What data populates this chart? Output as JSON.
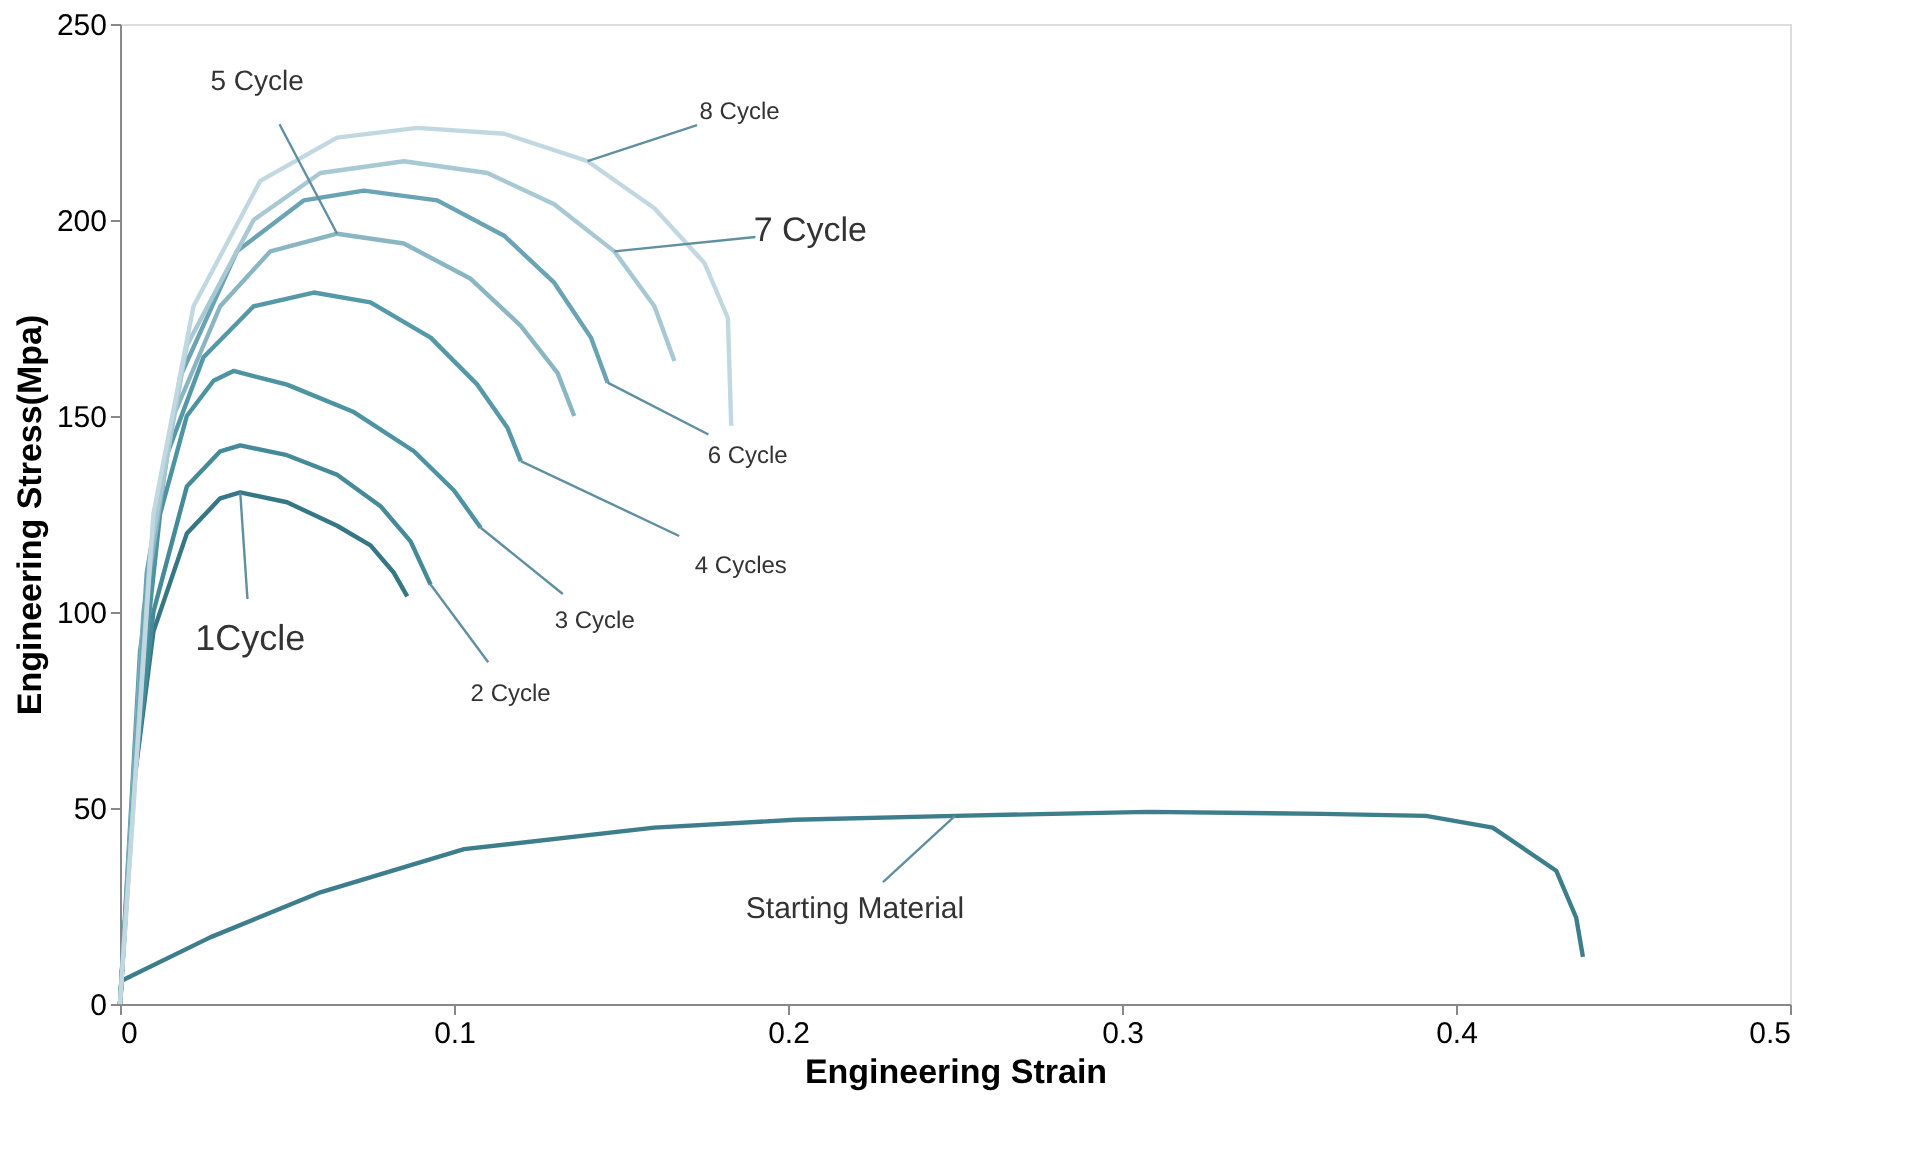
{
  "chart_data": {
    "type": "line",
    "xlabel": "Engineering Strain",
    "ylabel": "Engineering Stress(Mpa)",
    "xlim": [
      0,
      0.5
    ],
    "xticks": [
      0,
      0.1,
      0.2,
      0.3,
      0.4,
      0.5
    ],
    "ylim": [
      0,
      250
    ],
    "yticks": [
      0,
      50,
      100,
      150,
      200,
      250
    ],
    "grid": false,
    "legend": false,
    "line_style": "solid",
    "marker": "none",
    "series": [
      {
        "color": "#3e7e8c",
        "x": [
          0,
          0.0006,
          0.027,
          0.06,
          0.103,
          0.16,
          0.202,
          0.25,
          0.308,
          0.36,
          0.391,
          0.411,
          0.43,
          0.436,
          0.438
        ],
        "values": [
          0,
          6,
          17,
          28.5,
          39.5,
          45,
          47,
          48,
          49,
          48.5,
          48,
          45,
          34,
          22,
          12
        ]
      },
      {
        "color": "#357785",
        "x": [
          0,
          0.004,
          0.01,
          0.02,
          0.03,
          0.036,
          0.05,
          0.065,
          0.075,
          0.082,
          0.086
        ],
        "values": [
          0,
          55,
          95,
          120,
          129,
          130.5,
          128,
          122,
          117,
          110,
          104
        ]
      },
      {
        "color": "#458a98",
        "x": [
          0,
          0.004,
          0.01,
          0.02,
          0.03,
          0.036,
          0.05,
          0.065,
          0.078,
          0.087,
          0.093
        ],
        "values": [
          0,
          55,
          100,
          132,
          141,
          142.5,
          140,
          135,
          127,
          118,
          107
        ]
      },
      {
        "color": "#4d93a2",
        "x": [
          0,
          0.005,
          0.012,
          0.02,
          0.028,
          0.034,
          0.05,
          0.07,
          0.088,
          0.1,
          0.108
        ],
        "values": [
          0,
          70,
          125,
          150,
          159,
          161.5,
          158,
          151,
          141,
          131,
          121.5
        ]
      },
      {
        "color": "#5598a8",
        "x": [
          0,
          0.006,
          0.014,
          0.025,
          0.04,
          0.058,
          0.075,
          0.093,
          0.107,
          0.116,
          0.12
        ],
        "values": [
          0,
          90,
          140,
          165,
          178,
          181.5,
          179,
          170,
          158,
          147,
          138.5
        ]
      },
      {
        "color": "#8ab6c4",
        "x": [
          0,
          0.007,
          0.016,
          0.03,
          0.045,
          0.065,
          0.085,
          0.105,
          0.12,
          0.131,
          0.136
        ],
        "values": [
          0,
          100,
          150,
          178,
          192,
          196.5,
          194,
          185,
          173,
          161,
          150
        ]
      },
      {
        "color": "#6aa3b3",
        "x": [
          0,
          0.008,
          0.018,
          0.035,
          0.055,
          0.073,
          0.095,
          0.115,
          0.13,
          0.141,
          0.146
        ],
        "values": [
          0,
          110,
          160,
          192,
          205,
          207.5,
          205,
          196,
          184,
          170,
          158.5
        ]
      },
      {
        "color": "#a8c8d4",
        "x": [
          0,
          0.009,
          0.02,
          0.04,
          0.06,
          0.085,
          0.11,
          0.13,
          0.148,
          0.16,
          0.166
        ],
        "values": [
          0,
          115,
          168,
          200,
          212,
          215,
          212,
          204,
          192,
          178,
          164
        ]
      },
      {
        "color": "#c2d8e1",
        "x": [
          0,
          0.01,
          0.022,
          0.042,
          0.065,
          0.089,
          0.115,
          0.14,
          0.16,
          0.175,
          0.182,
          0.183
        ],
        "values": [
          0,
          125,
          178,
          210,
          221,
          223.5,
          222,
          215,
          203,
          189,
          175,
          147.5
        ]
      }
    ],
    "annotations": [
      {
        "text": "Starting Material",
        "x": 0.25,
        "y": 48
      },
      {
        "text": "1Cycle",
        "x": 0.036,
        "y": 130.5
      },
      {
        "text": "2 Cycle",
        "x": 0.093,
        "y": 107
      },
      {
        "text": "3 Cycle",
        "x": 0.108,
        "y": 121.5
      },
      {
        "text": "4 Cycles",
        "x": 0.12,
        "y": 138.5
      },
      {
        "text": "5 Cycle",
        "x": 0.065,
        "y": 196.5
      },
      {
        "text": "6 Cycle",
        "x": 0.146,
        "y": 158.5
      },
      {
        "text": "7 Cycle",
        "x": 0.148,
        "y": 192
      },
      {
        "text": "8 Cycle",
        "x": 0.14,
        "y": 215
      }
    ]
  }
}
